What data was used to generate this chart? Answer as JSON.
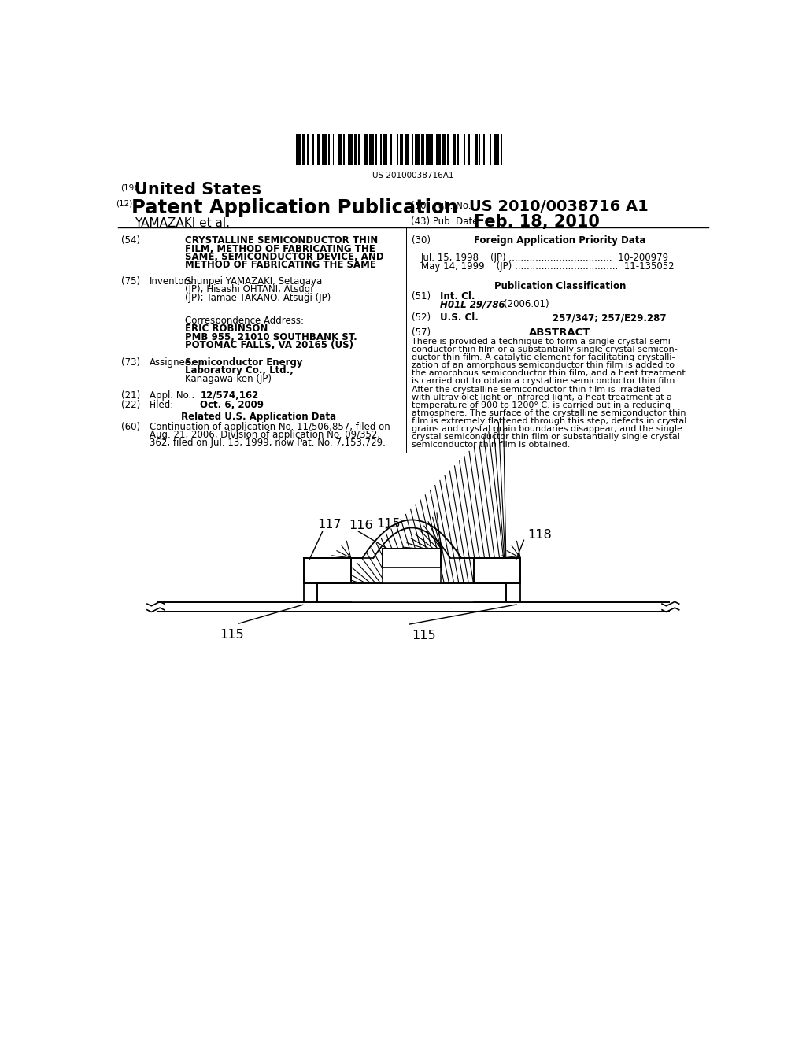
{
  "bg_color": "#ffffff",
  "barcode_text": "US 20100038716A1",
  "field_54_title_lines": [
    "CRYSTALLINE SEMICONDUCTOR THIN",
    "FILM, METHOD OF FABRICATING THE",
    "SAME, SEMICONDUCTOR DEVICE, AND",
    "METHOD OF FABRICATING THE SAME"
  ],
  "field_75_text_lines": [
    "Shunpei YAMAZAKI, Setagaya",
    "(JP); Hisashi OHTANI, Atsugi",
    "(JP); Tamae TAKANO, Atsugi (JP)"
  ],
  "field_73_text_lines": [
    "Semiconductor Energy",
    "Laboratory Co., Ltd.,",
    "Kanagawa-ken (JP)"
  ],
  "field_60_text_lines": [
    "Continuation of application No. 11/506,857, filed on",
    "Aug. 21, 2006, Division of application No. 09/352,",
    "362, filed on Jul. 13, 1999, now Pat. No. 7,153,729."
  ],
  "field_30_entry1": "Jul. 15, 1998    (JP) ...................................  10-200979",
  "field_30_entry2": "May 14, 1999    (JP) ...................................  11-135052",
  "abstract_lines": [
    "There is provided a technique to form a single crystal semi-",
    "conductor thin film or a substantially single crystal semicon-",
    "ductor thin film. A catalytic element for facilitating crystalli-",
    "zation of an amorphous semiconductor thin film is added to",
    "the amorphous semiconductor thin film, and a heat treatment",
    "is carried out to obtain a crystalline semiconductor thin film.",
    "After the crystalline semiconductor thin film is irradiated",
    "with ultraviolet light or infrared light, a heat treatment at a",
    "temperature of 900 to 1200° C. is carried out in a reducing",
    "atmosphere. The surface of the crystalline semiconductor thin",
    "film is extremely flattened through this step, defects in crystal",
    "grains and crystal grain boundaries disappear, and the single",
    "crystal semiconductor thin film or substantially single crystal",
    "semiconductor thin film is obtained."
  ]
}
